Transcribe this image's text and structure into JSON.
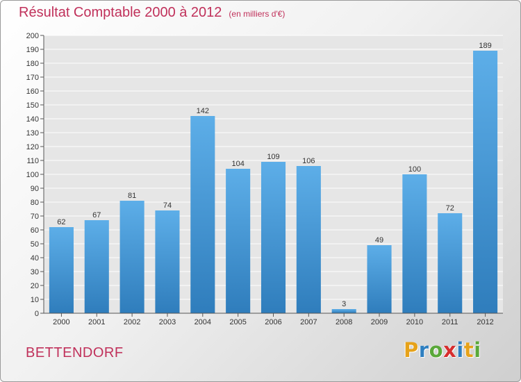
{
  "title": "Résultat Comptable 2000 à 2012",
  "subtitle": "(en milliers d'€)",
  "commune": "BETTENDORF",
  "logo": {
    "letters": [
      "P",
      "r",
      "o",
      "x",
      "i",
      "t",
      "i"
    ],
    "colors": [
      "#e6a21a",
      "#2e7fc0",
      "#5aa83a",
      "#d62e2e",
      "#2e7fc0",
      "#e6a21a",
      "#5aa83a"
    ]
  },
  "colors": {
    "title": "#c0305a",
    "bar_top": "#5daee8",
    "bar_bottom": "#2f7dbc",
    "grid": "#ffffff",
    "axis": "#555555"
  },
  "chart_data": {
    "type": "bar",
    "categories": [
      "2000",
      "2001",
      "2002",
      "2003",
      "2004",
      "2005",
      "2006",
      "2007",
      "2008",
      "2009",
      "2010",
      "2011",
      "2012"
    ],
    "values": [
      62,
      67,
      81,
      74,
      142,
      104,
      109,
      106,
      3,
      49,
      100,
      72,
      189
    ],
    "title": "Résultat Comptable 2000 à 2012",
    "ylim": [
      0,
      200
    ],
    "ytick_step": 10,
    "grid": true,
    "legend": "none"
  }
}
